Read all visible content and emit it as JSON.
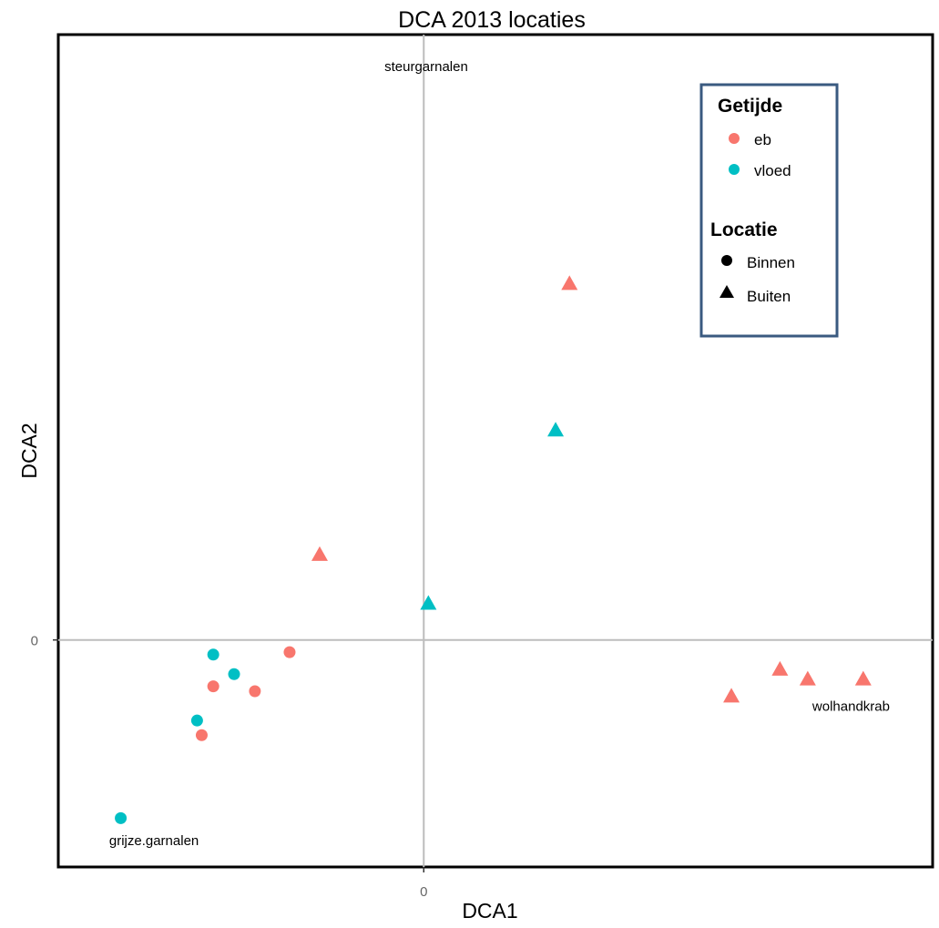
{
  "chart_data": {
    "type": "scatter",
    "title": "DCA 2013 locaties",
    "xlabel": "DCA1",
    "ylabel": "DCA2",
    "x_ticks": [
      {
        "value": 0,
        "label": "0"
      }
    ],
    "y_ticks": [
      {
        "value": 0,
        "label": "0"
      }
    ],
    "xlim": [
      -1.58,
      2.2
    ],
    "ylim": [
      -0.93,
      2.48
    ],
    "grid": false,
    "reference_lines": {
      "x": 0,
      "y": 0
    },
    "colors": {
      "eb": "#f8766d",
      "vloed": "#00bfc4"
    },
    "legend": {
      "position": "top-right",
      "groups": [
        {
          "title": "Getijde",
          "items": [
            {
              "label": "eb",
              "shape": "circle",
              "color": "#f8766d"
            },
            {
              "label": "vloed",
              "shape": "circle",
              "color": "#00bfc4"
            }
          ]
        },
        {
          "title": "Locatie",
          "items": [
            {
              "label": "Binnen",
              "shape": "circle",
              "color": "#000000"
            },
            {
              "label": "Buiten",
              "shape": "triangle",
              "color": "#000000"
            }
          ]
        }
      ]
    },
    "points": [
      {
        "x": -0.58,
        "y": -0.05,
        "getijde": "eb",
        "locatie": "Binnen"
      },
      {
        "x": -0.91,
        "y": -0.19,
        "getijde": "eb",
        "locatie": "Binnen"
      },
      {
        "x": -0.73,
        "y": -0.21,
        "getijde": "eb",
        "locatie": "Binnen"
      },
      {
        "x": -0.96,
        "y": -0.39,
        "getijde": "eb",
        "locatie": "Binnen"
      },
      {
        "x": -0.91,
        "y": -0.06,
        "getijde": "vloed",
        "locatie": "Binnen"
      },
      {
        "x": -0.82,
        "y": -0.14,
        "getijde": "vloed",
        "locatie": "Binnen"
      },
      {
        "x": -0.98,
        "y": -0.33,
        "getijde": "vloed",
        "locatie": "Binnen"
      },
      {
        "x": -1.31,
        "y": -0.73,
        "getijde": "vloed",
        "locatie": "Binnen"
      },
      {
        "x": 0.63,
        "y": 1.46,
        "getijde": "eb",
        "locatie": "Buiten"
      },
      {
        "x": -0.45,
        "y": 0.35,
        "getijde": "eb",
        "locatie": "Buiten"
      },
      {
        "x": 1.33,
        "y": -0.23,
        "getijde": "eb",
        "locatie": "Buiten"
      },
      {
        "x": 1.54,
        "y": -0.12,
        "getijde": "eb",
        "locatie": "Buiten"
      },
      {
        "x": 1.66,
        "y": -0.16,
        "getijde": "eb",
        "locatie": "Buiten"
      },
      {
        "x": 1.9,
        "y": -0.16,
        "getijde": "eb",
        "locatie": "Buiten"
      },
      {
        "x": 0.57,
        "y": 0.86,
        "getijde": "vloed",
        "locatie": "Buiten"
      },
      {
        "x": 0.02,
        "y": 0.15,
        "getijde": "vloed",
        "locatie": "Buiten"
      }
    ],
    "annotations": [
      {
        "text": "steurgarnalen",
        "x": -0.17,
        "y": 2.33
      },
      {
        "text": "grijze.garnalen",
        "x": -1.36,
        "y": -0.84
      },
      {
        "text": "wolhandkrab",
        "x": 1.68,
        "y": -0.29
      }
    ]
  }
}
